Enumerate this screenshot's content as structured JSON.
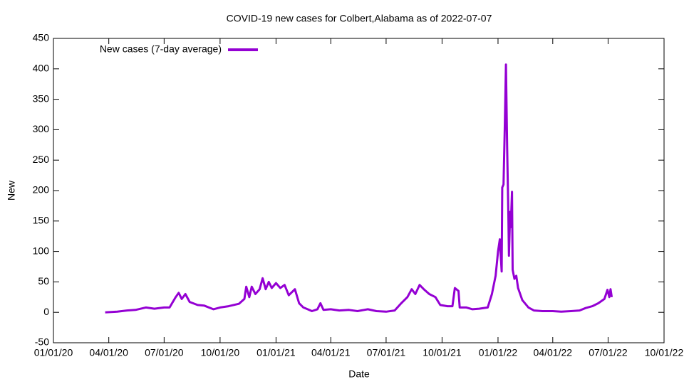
{
  "chart_data": {
    "type": "line",
    "title": "COVID-19 new cases for Colbert,Alabama as of 2022-07-07",
    "x_label": "Date",
    "y_label": "New",
    "legend_position": "top-left",
    "xlim": [
      "2020-01-01",
      "2022-10-01"
    ],
    "xticks": [
      {
        "value": "2020-01-01",
        "label": "01/01/20"
      },
      {
        "value": "2020-04-01",
        "label": "04/01/20"
      },
      {
        "value": "2020-07-01",
        "label": "07/01/20"
      },
      {
        "value": "2020-10-01",
        "label": "10/01/20"
      },
      {
        "value": "2021-01-01",
        "label": "01/01/21"
      },
      {
        "value": "2021-04-01",
        "label": "04/01/21"
      },
      {
        "value": "2021-07-01",
        "label": "07/01/21"
      },
      {
        "value": "2021-10-01",
        "label": "10/01/21"
      },
      {
        "value": "2022-01-01",
        "label": "01/01/22"
      },
      {
        "value": "2022-04-01",
        "label": "04/01/22"
      },
      {
        "value": "2022-07-01",
        "label": "07/01/22"
      },
      {
        "value": "2022-10-01",
        "label": "10/01/22"
      }
    ],
    "ylim": [
      -50,
      450
    ],
    "yticks": [
      -50,
      0,
      50,
      100,
      150,
      200,
      250,
      300,
      350,
      400,
      450
    ],
    "x": [
      "2020-03-26",
      "2020-04-15",
      "2020-05-01",
      "2020-05-15",
      "2020-06-01",
      "2020-06-15",
      "2020-07-01",
      "2020-07-10",
      "2020-07-20",
      "2020-07-25",
      "2020-07-30",
      "2020-08-05",
      "2020-08-12",
      "2020-08-25",
      "2020-09-05",
      "2020-09-20",
      "2020-10-01",
      "2020-10-15",
      "2020-11-01",
      "2020-11-10",
      "2020-11-13",
      "2020-11-18",
      "2020-11-22",
      "2020-11-28",
      "2020-12-05",
      "2020-12-10",
      "2020-12-15",
      "2020-12-20",
      "2020-12-25",
      "2021-01-01",
      "2021-01-08",
      "2021-01-15",
      "2021-01-22",
      "2021-02-01",
      "2021-02-08",
      "2021-02-15",
      "2021-02-22",
      "2021-03-01",
      "2021-03-10",
      "2021-03-15",
      "2021-03-20",
      "2021-04-01",
      "2021-04-15",
      "2021-05-01",
      "2021-05-15",
      "2021-06-01",
      "2021-06-15",
      "2021-07-01",
      "2021-07-15",
      "2021-07-25",
      "2021-08-05",
      "2021-08-12",
      "2021-08-18",
      "2021-08-25",
      "2021-09-01",
      "2021-09-10",
      "2021-09-20",
      "2021-09-28",
      "2021-10-10",
      "2021-10-18",
      "2021-10-22",
      "2021-10-28",
      "2021-10-30",
      "2021-11-10",
      "2021-11-20",
      "2021-12-01",
      "2021-12-15",
      "2021-12-22",
      "2021-12-28",
      "2022-01-01",
      "2022-01-04",
      "2022-01-07",
      "2022-01-08",
      "2022-01-10",
      "2022-01-12",
      "2022-01-14",
      "2022-01-16",
      "2022-01-18",
      "2022-01-19",
      "2022-01-21",
      "2022-01-22",
      "2022-01-24",
      "2022-01-25",
      "2022-01-28",
      "2022-01-31",
      "2022-02-03",
      "2022-02-10",
      "2022-02-20",
      "2022-03-01",
      "2022-03-15",
      "2022-04-01",
      "2022-04-15",
      "2022-05-01",
      "2022-05-15",
      "2022-05-25",
      "2022-06-05",
      "2022-06-15",
      "2022-06-25",
      "2022-06-30",
      "2022-07-03",
      "2022-07-05",
      "2022-07-07"
    ],
    "series": [
      {
        "name": "New cases (7-day average)",
        "color": "#9400d3",
        "values": [
          0,
          1,
          3,
          4,
          8,
          6,
          8,
          8,
          25,
          32,
          22,
          30,
          17,
          12,
          11,
          5,
          8,
          10,
          14,
          22,
          42,
          25,
          42,
          30,
          38,
          56,
          38,
          50,
          40,
          48,
          40,
          45,
          28,
          38,
          15,
          8,
          5,
          2,
          5,
          15,
          4,
          5,
          3,
          4,
          2,
          5,
          2,
          1,
          3,
          14,
          25,
          38,
          30,
          45,
          38,
          30,
          25,
          12,
          10,
          10,
          40,
          35,
          8,
          8,
          5,
          6,
          8,
          30,
          60,
          100,
          120,
          67,
          205,
          210,
          300,
          407,
          270,
          160,
          93,
          165,
          140,
          198,
          70,
          55,
          60,
          40,
          20,
          8,
          3,
          2,
          2,
          1,
          2,
          3,
          7,
          10,
          15,
          22,
          37,
          25,
          38,
          25
        ]
      }
    ]
  }
}
